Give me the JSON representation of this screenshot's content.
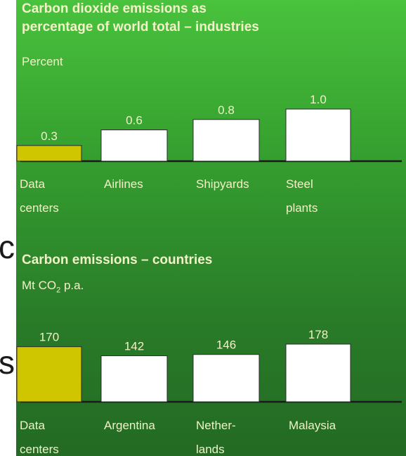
{
  "background": {
    "partial_glyph_1": "c",
    "partial_glyph_2": "s"
  },
  "colors": {
    "highlight_bar": "#cfc600",
    "bar": "#ffffff",
    "baseline": "#1a1a1a",
    "text": "#f2f2c8"
  },
  "chart_data": [
    {
      "type": "bar",
      "title_line1": "Carbon dioxide emissions as",
      "title_line2": "percentage of world total – industries",
      "ylabel": "Percent",
      "categories": [
        [
          "Data",
          "centers"
        ],
        [
          "Airlines"
        ],
        [
          "Shipyards"
        ],
        [
          "Steel",
          "plants"
        ]
      ],
      "values": [
        0.3,
        0.6,
        0.8,
        1.0
      ],
      "value_labels": [
        "0.3",
        "0.6",
        "0.8",
        "1.0"
      ],
      "highlight_index": 0,
      "ylim": [
        0,
        1.0
      ]
    },
    {
      "type": "bar",
      "title": "Carbon emissions – countries",
      "ylabel_prefix": "Mt CO",
      "ylabel_sub": "2",
      "ylabel_suffix": " p.a.",
      "categories": [
        [
          "Data",
          "centers"
        ],
        [
          "Argentina"
        ],
        [
          "Nether-",
          "lands"
        ],
        [
          "Malaysia"
        ]
      ],
      "values": [
        170,
        142,
        146,
        178
      ],
      "value_labels": [
        "170",
        "142",
        "146",
        "178"
      ],
      "highlight_index": 0,
      "ylim": [
        0,
        178
      ]
    }
  ]
}
